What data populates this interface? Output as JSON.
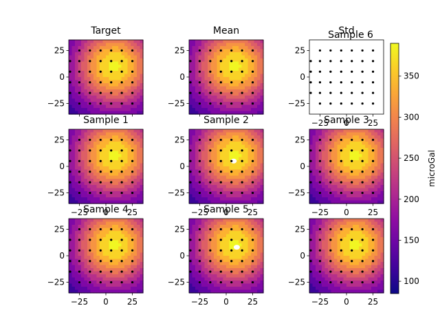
{
  "chart_data": {
    "type": "contour_grid",
    "units_label": "microGal",
    "colormap": "plasma",
    "colorbar": {
      "min": 85,
      "max": 390,
      "ticks": [
        100,
        150,
        200,
        250,
        300,
        350
      ]
    },
    "x_ticks": [
      -25,
      0,
      25
    ],
    "y_ticks": [
      25,
      0,
      -25
    ],
    "xlim": [
      -35,
      35
    ],
    "ylim": [
      -35,
      35
    ],
    "stations": {
      "x": [
        -25,
        -15,
        -5,
        5,
        15,
        25
      ],
      "y": [
        -25,
        -15,
        -5,
        5,
        15,
        25
      ],
      "extra_column_x": -35,
      "extra_column_y": [
        -15,
        -5,
        5,
        15
      ]
    },
    "field_model": {
      "description_units": "microGal",
      "peak_x": 8,
      "peak_y": 10,
      "peak_value": 380,
      "base_value": 85,
      "sigma": 28
    },
    "panels": [
      {
        "title": "Target",
        "x_tick_labels": false,
        "holes": []
      },
      {
        "title": "Mean",
        "x_tick_labels": false,
        "holes": []
      },
      {
        "title": "Std",
        "overlay_title": "Sample 6",
        "empty": true,
        "x_tick_labels": true,
        "holes": []
      },
      {
        "title": "Sample 1",
        "x_tick_labels": true,
        "holes": []
      },
      {
        "title": "Sample 2",
        "x_tick_labels": true,
        "holes": [
          [
            7,
            5
          ]
        ]
      },
      {
        "title": "Sample 3",
        "x_tick_labels": true,
        "holes": []
      },
      {
        "title": "Sample 4",
        "x_tick_labels": true,
        "holes": []
      },
      {
        "title": "Sample 5",
        "x_tick_labels": true,
        "holes": [
          [
            10,
            8
          ]
        ]
      },
      {
        "title": "",
        "x_tick_labels": true,
        "holes": []
      }
    ]
  }
}
